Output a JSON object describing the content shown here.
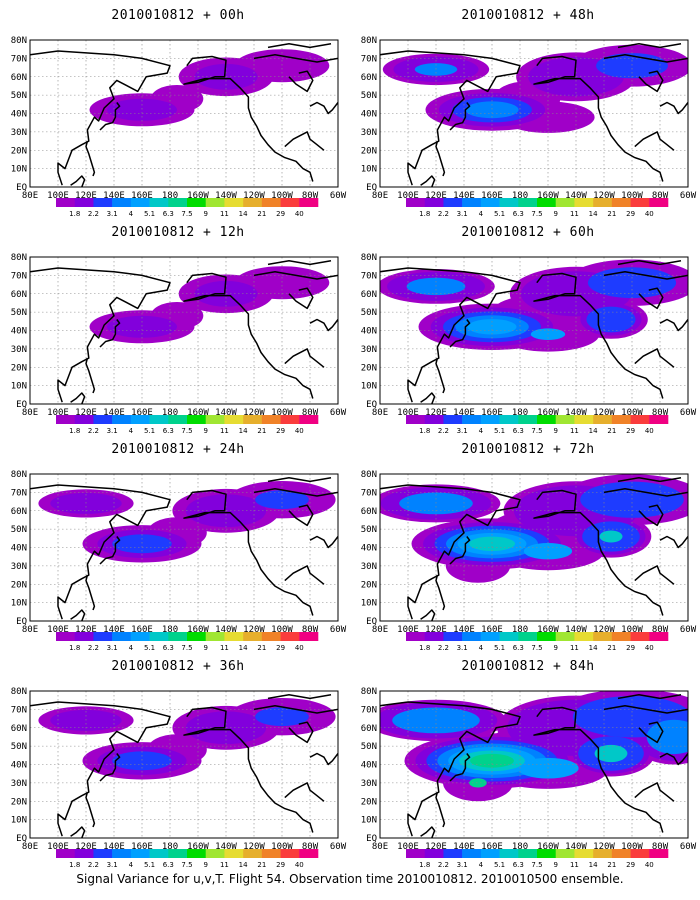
{
  "figure": {
    "footer": "Signal Variance for u,v,T. Flight 54. Observation time 2010010812. 2010010500 ensemble."
  },
  "map": {
    "lon_labels": [
      "80E",
      "100E",
      "120E",
      "140E",
      "160E",
      "180",
      "160W",
      "140W",
      "120W",
      "100W",
      "80W",
      "60W"
    ],
    "lat_labels": [
      "EQ",
      "10N",
      "20N",
      "30N",
      "40N",
      "50N",
      "60N",
      "70N",
      "80N"
    ]
  },
  "colorbar": {
    "labels": [
      "1.8",
      "2.2",
      "3.1",
      "4",
      "5.1",
      "6.3",
      "7.5",
      "9",
      "11",
      "14",
      "21",
      "29",
      "40"
    ],
    "colors": [
      "#a000c8",
      "#8200dc",
      "#1e3cff",
      "#0082ff",
      "#00a0ff",
      "#00c8c8",
      "#00d28c",
      "#00dc00",
      "#a0e632",
      "#e6dc32",
      "#e6af2d",
      "#f08228",
      "#fa3c3c",
      "#f00082"
    ]
  },
  "panels": [
    {
      "title": "2010010812 + 00h",
      "level": 1
    },
    {
      "title": "2010010812 + 48h",
      "level": 3
    },
    {
      "title": "2010010812 + 12h",
      "level": 1
    },
    {
      "title": "2010010812 + 60h",
      "level": 4
    },
    {
      "title": "2010010812 + 24h",
      "level": 2
    },
    {
      "title": "2010010812 + 72h",
      "level": 5
    },
    {
      "title": "2010010812 + 36h",
      "level": 2
    },
    {
      "title": "2010010812 + 84h",
      "level": 6
    }
  ]
}
